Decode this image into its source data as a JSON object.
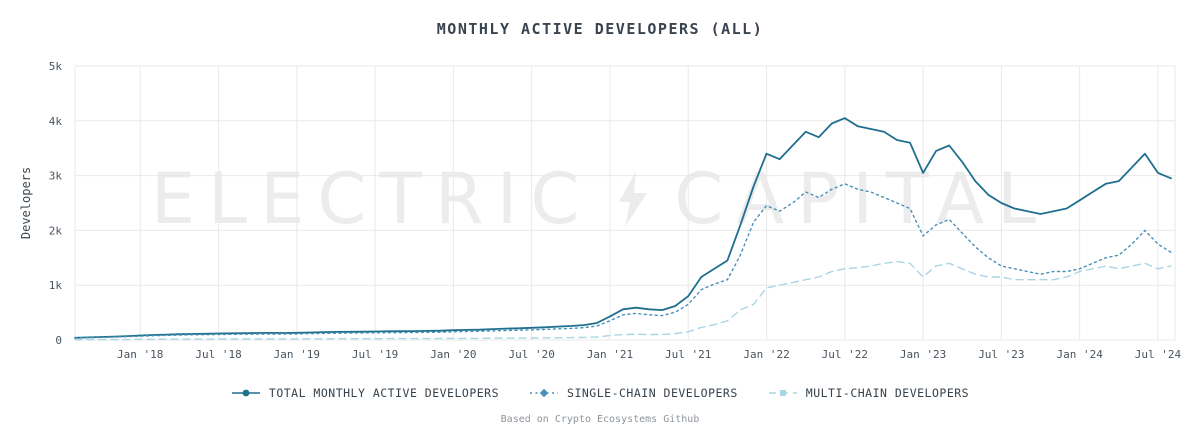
{
  "title": "MONTHLY ACTIVE DEVELOPERS (ALL)",
  "footer": "Based on Crypto Ecosystems Github",
  "watermark": {
    "left": "ELECTRIC",
    "right": "CAPITAL"
  },
  "colors": {
    "total": "#1f6f8f",
    "single": "#4a90b5",
    "multi": "#a9d5e5",
    "grid": "#e9e9e9",
    "title_text": "#3a444e",
    "tick_text": "#4a545e",
    "legend_text": "#37424c",
    "footer_text": "#8f959b",
    "watermark": "#ececec",
    "background": "#ffffff"
  },
  "chart_data": {
    "type": "line",
    "title": "MONTHLY ACTIVE DEVELOPERS (ALL)",
    "xlabel": "",
    "ylabel": "Developers",
    "ylim": [
      0,
      5000
    ],
    "grid": true,
    "legend_position": "bottom",
    "yticks": [
      {
        "label": "0",
        "value": 0
      },
      {
        "label": "1k",
        "value": 1000
      },
      {
        "label": "2k",
        "value": 2000
      },
      {
        "label": "3k",
        "value": 3000
      },
      {
        "label": "4k",
        "value": 4000
      },
      {
        "label": "5k",
        "value": 5000
      }
    ],
    "xticks": [
      {
        "label": "Jan '18",
        "month": "2018-01"
      },
      {
        "label": "Jul '18",
        "month": "2018-07"
      },
      {
        "label": "Jan '19",
        "month": "2019-01"
      },
      {
        "label": "Jul '19",
        "month": "2019-07"
      },
      {
        "label": "Jan '20",
        "month": "2020-01"
      },
      {
        "label": "Jul '20",
        "month": "2020-07"
      },
      {
        "label": "Jan '21",
        "month": "2021-01"
      },
      {
        "label": "Jul '21",
        "month": "2021-07"
      },
      {
        "label": "Jan '22",
        "month": "2022-01"
      },
      {
        "label": "Jul '22",
        "month": "2022-07"
      },
      {
        "label": "Jan '23",
        "month": "2023-01"
      },
      {
        "label": "Jul '23",
        "month": "2023-07"
      },
      {
        "label": "Jan '24",
        "month": "2024-01"
      },
      {
        "label": "Jul '24",
        "month": "2024-07"
      }
    ],
    "x": [
      "2017-08",
      "2017-09",
      "2017-10",
      "2017-11",
      "2017-12",
      "2018-01",
      "2018-02",
      "2018-03",
      "2018-04",
      "2018-05",
      "2018-06",
      "2018-07",
      "2018-08",
      "2018-09",
      "2018-10",
      "2018-11",
      "2018-12",
      "2019-01",
      "2019-02",
      "2019-03",
      "2019-04",
      "2019-05",
      "2019-06",
      "2019-07",
      "2019-08",
      "2019-09",
      "2019-10",
      "2019-11",
      "2019-12",
      "2020-01",
      "2020-02",
      "2020-03",
      "2020-04",
      "2020-05",
      "2020-06",
      "2020-07",
      "2020-08",
      "2020-09",
      "2020-10",
      "2020-11",
      "2020-12",
      "2021-01",
      "2021-02",
      "2021-03",
      "2021-04",
      "2021-05",
      "2021-06",
      "2021-07",
      "2021-08",
      "2021-09",
      "2021-10",
      "2021-11",
      "2021-12",
      "2022-01",
      "2022-02",
      "2022-03",
      "2022-04",
      "2022-05",
      "2022-06",
      "2022-07",
      "2022-08",
      "2022-09",
      "2022-10",
      "2022-11",
      "2022-12",
      "2023-01",
      "2023-02",
      "2023-03",
      "2023-04",
      "2023-05",
      "2023-06",
      "2023-07",
      "2023-08",
      "2023-09",
      "2023-10",
      "2023-11",
      "2023-12",
      "2024-01",
      "2024-02",
      "2024-03",
      "2024-04",
      "2024-05",
      "2024-06",
      "2024-07",
      "2024-08"
    ],
    "series": [
      {
        "key": "total",
        "name": "TOTAL MONTHLY ACTIVE DEVELOPERS",
        "color": "#1f6f8f",
        "style": "solid",
        "marker": "circle",
        "values": [
          40,
          48,
          55,
          62,
          72,
          82,
          92,
          98,
          105,
          110,
          114,
          118,
          122,
          124,
          127,
          129,
          128,
          132,
          137,
          142,
          147,
          150,
          152,
          155,
          158,
          160,
          163,
          166,
          170,
          178,
          184,
          188,
          198,
          208,
          214,
          222,
          232,
          244,
          256,
          272,
          310,
          430,
          560,
          590,
          560,
          545,
          620,
          800,
          1150,
          1300,
          1450,
          2100,
          2800,
          3400,
          3300,
          3550,
          3800,
          3700,
          3950,
          4050,
          3900,
          3850,
          3800,
          3650,
          3600,
          3050,
          3450,
          3550,
          3250,
          2900,
          2650,
          2500,
          2400,
          2350,
          2300,
          2350,
          2400,
          2550,
          2700,
          2850,
          2900,
          3150,
          3400,
          3050,
          2950
        ]
      },
      {
        "key": "single",
        "name": "SINGLE-CHAIN DEVELOPERS",
        "color": "#4a90b5",
        "style": "dotted",
        "marker": "diamond",
        "values": [
          35,
          42,
          48,
          54,
          62,
          70,
          79,
          84,
          90,
          94,
          97,
          100,
          104,
          106,
          108,
          110,
          109,
          112,
          116,
          120,
          124,
          127,
          129,
          131,
          133,
          135,
          137,
          140,
          143,
          150,
          155,
          158,
          166,
          174,
          179,
          185,
          193,
          203,
          212,
          225,
          255,
          350,
          460,
          485,
          460,
          445,
          505,
          650,
          920,
          1020,
          1100,
          1550,
          2150,
          2450,
          2350,
          2500,
          2700,
          2600,
          2750,
          2850,
          2750,
          2700,
          2600,
          2500,
          2400,
          1900,
          2100,
          2200,
          1950,
          1700,
          1500,
          1350,
          1300,
          1250,
          1200,
          1250,
          1250,
          1300,
          1400,
          1500,
          1550,
          1750,
          2000,
          1750,
          1600
        ]
      },
      {
        "key": "multi",
        "name": "MULTI-CHAIN DEVELOPERS",
        "color": "#a9d5e5",
        "style": "dashed",
        "marker": "square",
        "values": [
          5,
          6,
          7,
          8,
          10,
          12,
          13,
          14,
          15,
          16,
          17,
          18,
          18,
          18,
          19,
          19,
          19,
          20,
          21,
          22,
          23,
          23,
          23,
          24,
          25,
          25,
          26,
          26,
          27,
          28,
          29,
          30,
          32,
          34,
          35,
          37,
          39,
          41,
          44,
          47,
          55,
          80,
          100,
          105,
          100,
          100,
          115,
          150,
          230,
          280,
          350,
          550,
          650,
          950,
          1000,
          1050,
          1100,
          1150,
          1250,
          1300,
          1320,
          1350,
          1400,
          1430,
          1400,
          1150,
          1350,
          1400,
          1300,
          1200,
          1150,
          1150,
          1100,
          1100,
          1100,
          1100,
          1150,
          1250,
          1300,
          1350,
          1300,
          1350,
          1400,
          1300,
          1350
        ]
      }
    ]
  }
}
